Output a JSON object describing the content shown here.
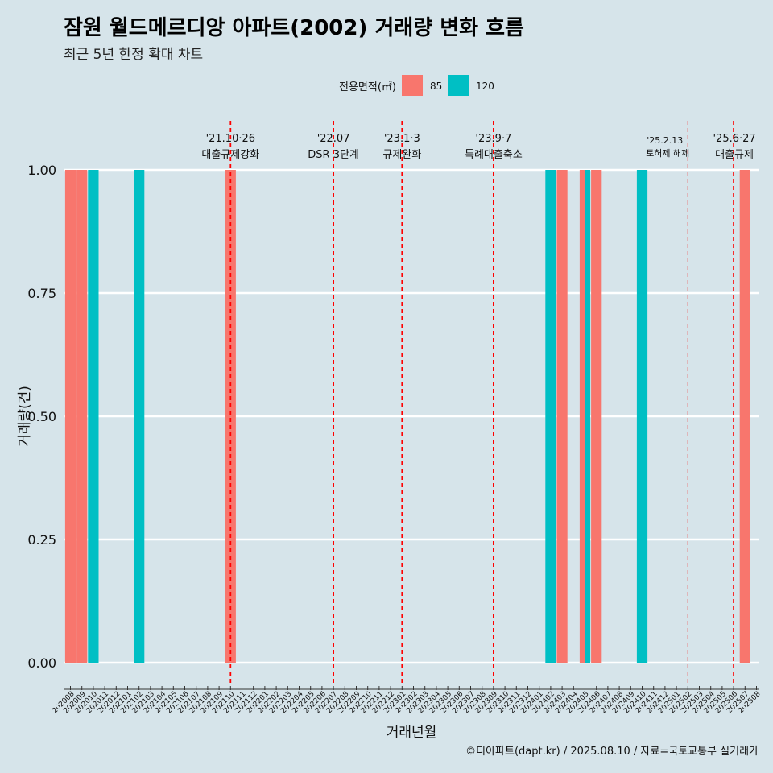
{
  "title": "잠원 월드메르디앙 아파트(2002) 거래량 변화 흐름",
  "subtitle": "최근 5년 한정 확대 차트",
  "caption": "©디아파트(dapt.kr) / 2025.08.10 / 자료=국토교통부 실거래가",
  "colors": {
    "background": "#d6e4ea",
    "series_85": "#f8766d",
    "series_120": "#00bfc4",
    "event_line": "#ff0000"
  },
  "chart_data": {
    "type": "bar",
    "xlabel": "거래년월",
    "ylabel": "거래량(건)",
    "ylim": [
      0,
      1
    ],
    "yticks": [
      "0.00",
      "0.25",
      "0.50",
      "0.75",
      "1.00"
    ],
    "grid": true,
    "legend": {
      "title": "전용면적(㎡)",
      "position": "top"
    },
    "categories": [
      "202008",
      "202009",
      "202010",
      "202011",
      "202012",
      "202101",
      "202102",
      "202103",
      "202104",
      "202105",
      "202106",
      "202107",
      "202108",
      "202109",
      "202110",
      "202111",
      "202112",
      "202201",
      "202202",
      "202203",
      "202204",
      "202205",
      "202206",
      "202207",
      "202208",
      "202209",
      "202210",
      "202211",
      "202212",
      "202301",
      "202302",
      "202303",
      "202304",
      "202305",
      "202306",
      "202307",
      "202308",
      "202309",
      "202310",
      "202311",
      "202312",
      "202401",
      "202402",
      "202403",
      "202404",
      "202405",
      "202406",
      "202407",
      "202408",
      "202409",
      "202410",
      "202411",
      "202412",
      "202501",
      "202502",
      "202503",
      "202504",
      "202505",
      "202506",
      "202507",
      "202508"
    ],
    "series": [
      {
        "name": "85",
        "color": "#f8766d",
        "points": [
          {
            "x": "202008",
            "y": 1
          },
          {
            "x": "202009",
            "y": 1
          },
          {
            "x": "202110",
            "y": 1
          },
          {
            "x": "202403",
            "y": 1
          },
          {
            "x": "202405",
            "y": 1
          },
          {
            "x": "202406",
            "y": 1
          },
          {
            "x": "202507",
            "y": 1
          }
        ]
      },
      {
        "name": "120",
        "color": "#00bfc4",
        "points": [
          {
            "x": "202010",
            "y": 1
          },
          {
            "x": "202102",
            "y": 1
          },
          {
            "x": "202402",
            "y": 1
          },
          {
            "x": "202405",
            "y": 1
          },
          {
            "x": "202410",
            "y": 1
          }
        ]
      }
    ],
    "events": [
      {
        "x": "202110",
        "date": "'21.10·26",
        "label": "대출규제강화"
      },
      {
        "x": "202207",
        "date": "'22.07",
        "label": "DSR 3단계"
      },
      {
        "x": "202301",
        "date": "'23.1·3",
        "label": "규제완화"
      },
      {
        "x": "202309",
        "date": "'23.9·7",
        "label": "특례대출축소"
      },
      {
        "x": "202502",
        "date": "'25.2.13",
        "label": "토허제 해제"
      },
      {
        "x": "202506",
        "date": "'25.6·27",
        "label": "대출규제"
      }
    ]
  }
}
